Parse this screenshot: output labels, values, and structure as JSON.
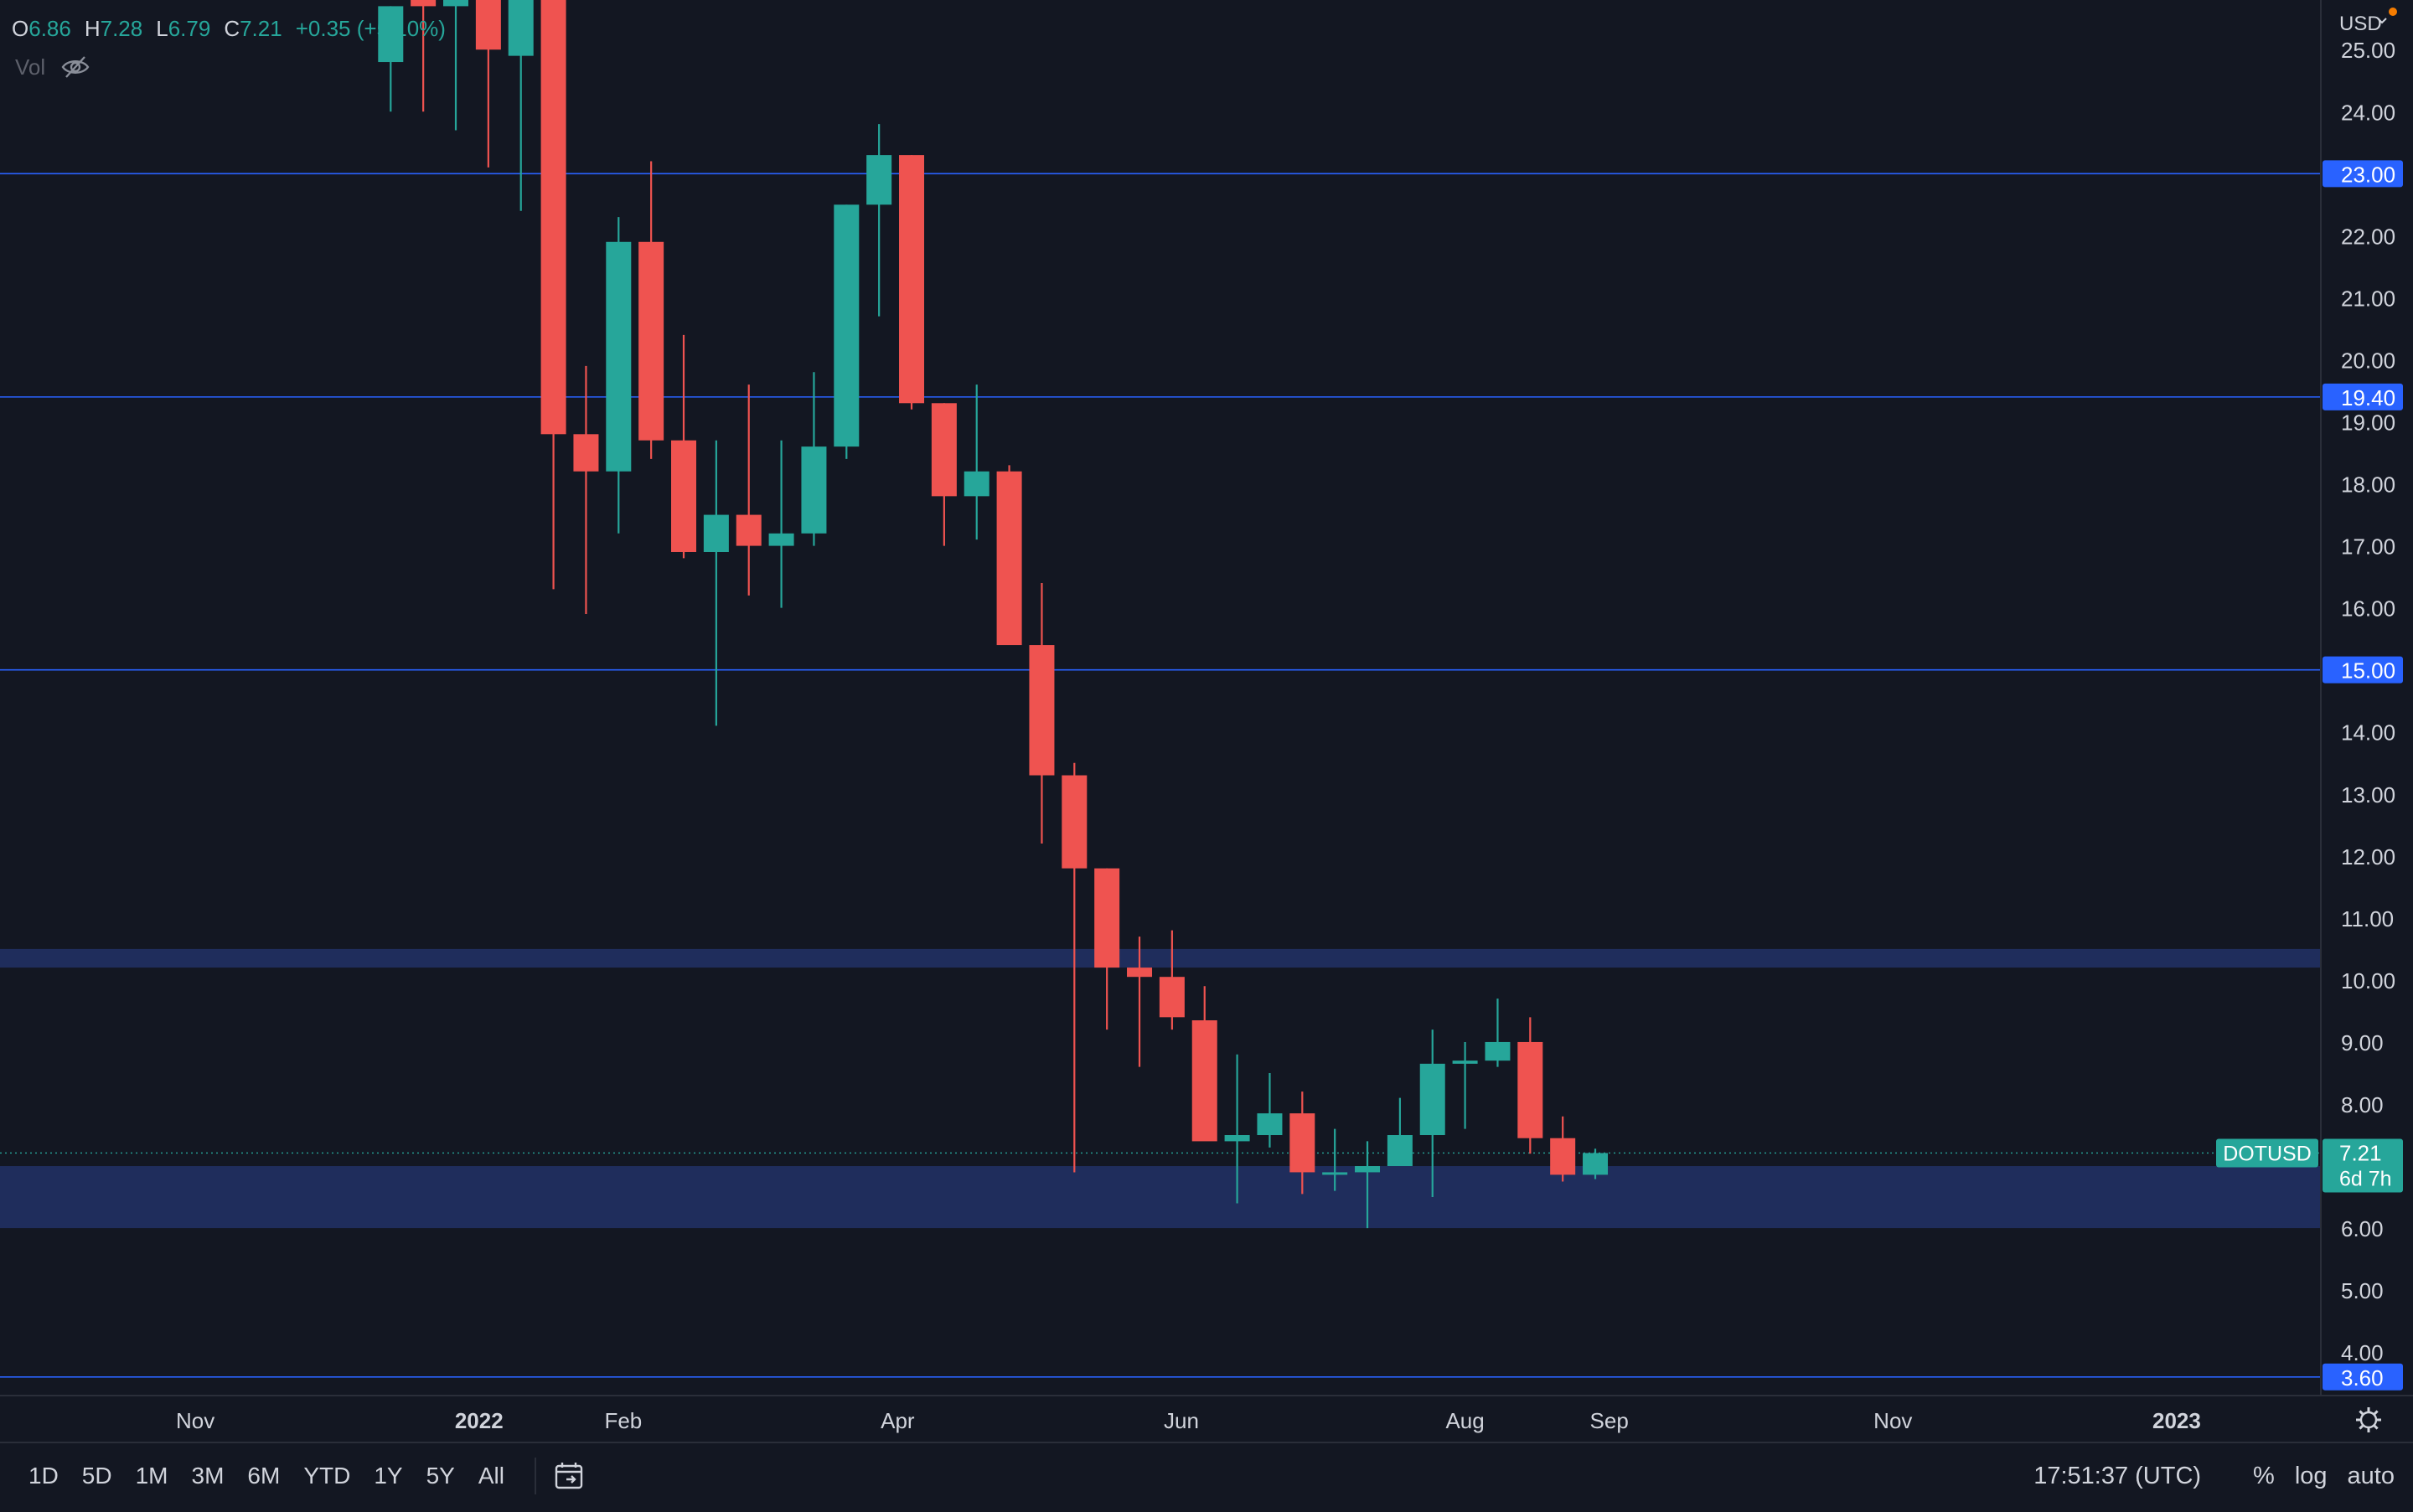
{
  "legend": {
    "open_label": "O",
    "open_value": "6.86",
    "high_label": "H",
    "high_value": "7.28",
    "low_label": "L",
    "low_value": "6.79",
    "close_label": "C",
    "close_value": "7.21",
    "change": "+0.35 (+5.10%)",
    "volume_label": "Vol",
    "volume_icon": "eye-hidden-icon"
  },
  "price_axis": {
    "currency": "USD",
    "ticks": [
      "4.00",
      "5.00",
      "6.00",
      "7.00",
      "8.00",
      "9.00",
      "10.00",
      "11.00",
      "12.00",
      "13.00",
      "14.00",
      "15.00",
      "16.00",
      "17.00",
      "18.00",
      "19.00",
      "20.00",
      "21.00",
      "22.00",
      "23.00",
      "24.00",
      "25.00"
    ],
    "level_labels": [
      "23.00",
      "19.40",
      "15.00",
      "3.60"
    ],
    "symbol_label": "DOTUSD",
    "last_price_label": "7.21",
    "countdown_label": "6d 7h"
  },
  "time_axis": {
    "labels": [
      {
        "text": "Nov",
        "date": "2021-11-01"
      },
      {
        "text": "2022",
        "date": "2022-01-01",
        "bold": true
      },
      {
        "text": "Feb",
        "date": "2022-02-01"
      },
      {
        "text": "Apr",
        "date": "2022-04-01"
      },
      {
        "text": "Jun",
        "date": "2022-06-01"
      },
      {
        "text": "Aug",
        "date": "2022-08-01"
      },
      {
        "text": "Sep",
        "date": "2022-09-01"
      },
      {
        "text": "Nov",
        "date": "2022-11-01"
      },
      {
        "text": "2023",
        "date": "2023-01-01",
        "bold": true
      }
    ]
  },
  "toolbar": {
    "timeframes": [
      "1D",
      "5D",
      "1M",
      "3M",
      "6M",
      "YTD",
      "1Y",
      "5Y",
      "All"
    ],
    "goto_icon": "calendar-goto-icon",
    "clock": "17:51:37 (UTC)",
    "percent_label": "%",
    "log_label": "log",
    "auto_label": "auto",
    "settings_icon": "gear-icon"
  },
  "colors": {
    "background": "#131722",
    "up": "#26a69a",
    "down": "#ef5350",
    "level_line": "#2962ff",
    "zone": "#1f2d5c",
    "axis_text": "#d1d4dc",
    "level_label_bg": "#2962ff"
  },
  "chart_data": {
    "type": "candlestick",
    "symbol": "DOTUSD",
    "interval": "weekly",
    "ylim": [
      3.3,
      25.8
    ],
    "xlim": [
      "2021-09-20",
      "2023-02-01"
    ],
    "grid": false,
    "horizontal_levels": [
      23.0,
      19.4,
      15.0,
      3.6
    ],
    "zones": [
      [
        10.2,
        10.5
      ],
      [
        6.0,
        7.0
      ]
    ],
    "last_price": 7.21,
    "candles": [
      {
        "date": "2021-12-13",
        "open": 24.8,
        "high": 25.7,
        "low": 24.0,
        "close": 25.7
      },
      {
        "date": "2021-12-20",
        "open": 26.2,
        "high": 26.5,
        "low": 24.0,
        "close": 25.7
      },
      {
        "date": "2021-12-27",
        "open": 25.7,
        "high": 27.0,
        "low": 23.7,
        "close": 26.4
      },
      {
        "date": "2022-01-03",
        "open": 27.5,
        "high": 28.0,
        "low": 23.1,
        "close": 25.0
      },
      {
        "date": "2022-01-10",
        "open": 24.9,
        "high": 27.0,
        "low": 22.4,
        "close": 26.8
      },
      {
        "date": "2022-01-17",
        "open": 27.0,
        "high": 28.5,
        "low": 16.3,
        "close": 18.8
      },
      {
        "date": "2022-01-24",
        "open": 18.8,
        "high": 19.9,
        "low": 15.9,
        "close": 18.2
      },
      {
        "date": "2022-01-31",
        "open": 18.2,
        "high": 22.3,
        "low": 17.2,
        "close": 21.9
      },
      {
        "date": "2022-02-07",
        "open": 21.9,
        "high": 23.2,
        "low": 18.4,
        "close": 18.7
      },
      {
        "date": "2022-02-14",
        "open": 18.7,
        "high": 20.4,
        "low": 16.8,
        "close": 16.9
      },
      {
        "date": "2022-02-21",
        "open": 16.9,
        "high": 18.7,
        "low": 14.1,
        "close": 17.5
      },
      {
        "date": "2022-02-28",
        "open": 17.5,
        "high": 19.6,
        "low": 16.2,
        "close": 17.0
      },
      {
        "date": "2022-03-07",
        "open": 17.0,
        "high": 18.7,
        "low": 16.0,
        "close": 17.2
      },
      {
        "date": "2022-03-14",
        "open": 17.2,
        "high": 19.8,
        "low": 17.0,
        "close": 18.6
      },
      {
        "date": "2022-03-21",
        "open": 18.6,
        "high": 22.5,
        "low": 18.4,
        "close": 22.5
      },
      {
        "date": "2022-03-28",
        "open": 22.5,
        "high": 23.8,
        "low": 20.7,
        "close": 23.3
      },
      {
        "date": "2022-04-04",
        "open": 23.3,
        "high": 23.3,
        "low": 19.2,
        "close": 19.3
      },
      {
        "date": "2022-04-11",
        "open": 19.3,
        "high": 19.3,
        "low": 17.0,
        "close": 17.8
      },
      {
        "date": "2022-04-18",
        "open": 17.8,
        "high": 19.6,
        "low": 17.1,
        "close": 18.2
      },
      {
        "date": "2022-04-25",
        "open": 18.2,
        "high": 18.3,
        "low": 15.6,
        "close": 15.4
      },
      {
        "date": "2022-05-02",
        "open": 15.4,
        "high": 16.4,
        "low": 12.2,
        "close": 13.3
      },
      {
        "date": "2022-05-09",
        "open": 13.3,
        "high": 13.5,
        "low": 6.9,
        "close": 11.8
      },
      {
        "date": "2022-05-16",
        "open": 11.8,
        "high": 11.8,
        "low": 9.2,
        "close": 10.2
      },
      {
        "date": "2022-05-23",
        "open": 10.2,
        "high": 10.7,
        "low": 8.6,
        "close": 10.05
      },
      {
        "date": "2022-05-30",
        "open": 10.05,
        "high": 10.8,
        "low": 9.2,
        "close": 9.4
      },
      {
        "date": "2022-06-06",
        "open": 9.35,
        "high": 9.9,
        "low": 7.5,
        "close": 7.4
      },
      {
        "date": "2022-06-13",
        "open": 7.4,
        "high": 8.8,
        "low": 6.4,
        "close": 7.5
      },
      {
        "date": "2022-06-20",
        "open": 7.5,
        "high": 8.5,
        "low": 7.3,
        "close": 7.85
      },
      {
        "date": "2022-06-27",
        "open": 7.85,
        "high": 8.2,
        "low": 6.55,
        "close": 6.9
      },
      {
        "date": "2022-07-04",
        "open": 6.9,
        "high": 7.6,
        "low": 6.6,
        "close": 6.9
      },
      {
        "date": "2022-07-11",
        "open": 6.9,
        "high": 7.4,
        "low": 6.0,
        "close": 7.0
      },
      {
        "date": "2022-07-18",
        "open": 7.0,
        "high": 8.1,
        "low": 7.0,
        "close": 7.5
      },
      {
        "date": "2022-07-25",
        "open": 7.5,
        "high": 9.2,
        "low": 6.5,
        "close": 8.65
      },
      {
        "date": "2022-08-01",
        "open": 8.65,
        "high": 9.0,
        "low": 7.6,
        "close": 8.7
      },
      {
        "date": "2022-08-08",
        "open": 8.7,
        "high": 9.7,
        "low": 8.6,
        "close": 9.0
      },
      {
        "date": "2022-08-15",
        "open": 9.0,
        "high": 9.4,
        "low": 7.2,
        "close": 7.45
      },
      {
        "date": "2022-08-22",
        "open": 7.45,
        "high": 7.8,
        "low": 6.75,
        "close": 6.86
      },
      {
        "date": "2022-08-29",
        "open": 6.86,
        "high": 7.28,
        "low": 6.79,
        "close": 7.21
      }
    ]
  }
}
